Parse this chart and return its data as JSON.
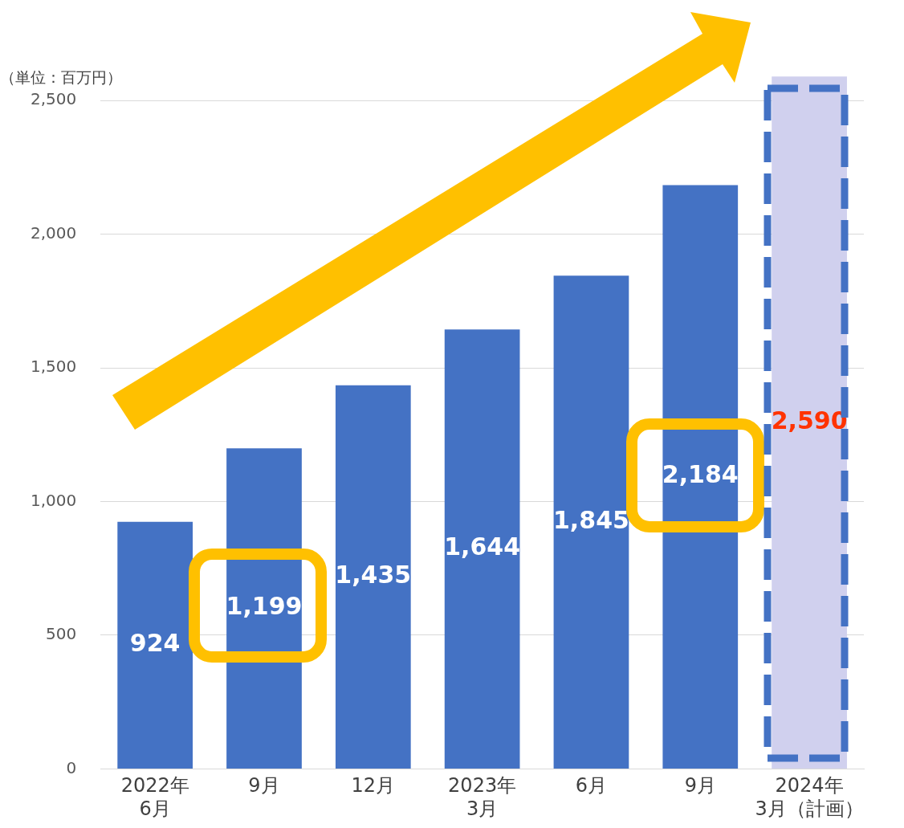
{
  "chart_data": {
    "type": "bar",
    "ylabel": "（単位：百万円）",
    "categories": [
      "2022年\n6月",
      "9月",
      "12月",
      "2023年\n3月",
      "6月",
      "9月",
      "2024年\n3月（計画）"
    ],
    "values": [
      924,
      1199,
      1435,
      1644,
      1845,
      2184,
      2590
    ],
    "colors": [
      "#4472c4",
      "#4472c4",
      "#4472c4",
      "#4472c4",
      "#4472c4",
      "#4472c4",
      "#d0d0ee"
    ],
    "value_labels": [
      "924",
      "1,199",
      "1,435",
      "1,644",
      "1,845",
      "2,184",
      "2,590"
    ],
    "ylim": [
      0,
      2600
    ],
    "yticks": [
      0,
      500,
      {
        "value": 1000,
        "label": "1,000"
      },
      {
        "value": 1500,
        "label": "1,500"
      },
      {
        "value": 2000,
        "label": "2,000"
      },
      {
        "value": 2500,
        "label": "2,500"
      }
    ],
    "grid": "y",
    "legend": false
  }
}
